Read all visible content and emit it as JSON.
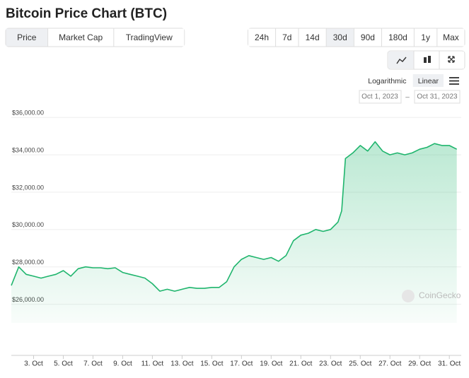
{
  "ui": {
    "tabs": [
      {
        "label": "Price",
        "active": true
      },
      {
        "label": "Market Cap",
        "active": false
      },
      {
        "label": "TradingView",
        "active": false
      }
    ],
    "ranges": [
      {
        "label": "24h",
        "active": false
      },
      {
        "label": "7d",
        "active": false
      },
      {
        "label": "14d",
        "active": false
      },
      {
        "label": "30d",
        "active": true
      },
      {
        "label": "90d",
        "active": false
      },
      {
        "label": "180d",
        "active": false
      },
      {
        "label": "1y",
        "active": false
      },
      {
        "label": "Max",
        "active": false
      }
    ],
    "scales": [
      {
        "label": "Logarithmic",
        "active": false
      },
      {
        "label": "Linear",
        "active": true
      }
    ],
    "date_from": "Oct 1, 2023",
    "date_sep": "–",
    "date_to": "Oct 31, 2023",
    "watermark": "CoinGecko"
  },
  "chart_data": {
    "type": "line",
    "title": "Bitcoin Price Chart (BTC)",
    "color": "#1fb56d",
    "grid": true,
    "log_scale": false,
    "x": [
      1.5,
      2,
      2.5,
      3,
      3.5,
      4,
      4.5,
      5,
      5.5,
      6,
      6.5,
      7,
      7.5,
      8,
      8.5,
      9,
      9.5,
      10,
      10.5,
      11,
      11.5,
      12,
      12.5,
      13,
      13.5,
      14,
      14.5,
      15,
      15.5,
      16,
      16.5,
      17,
      17.5,
      18,
      18.5,
      19,
      19.5,
      20,
      20.5,
      21,
      21.5,
      22,
      22.5,
      23,
      23.5,
      23.75,
      24,
      24.5,
      25,
      25.5,
      26,
      26.5,
      27,
      27.5,
      28,
      28.5,
      29,
      29.5,
      30,
      30.5,
      31,
      31.5
    ],
    "values": [
      27000,
      28000,
      27600,
      27500,
      27400,
      27500,
      27600,
      27800,
      27500,
      27900,
      28000,
      27950,
      27950,
      27900,
      27950,
      27700,
      27600,
      27500,
      27400,
      27100,
      26700,
      26800,
      26700,
      26800,
      26900,
      26850,
      26850,
      26900,
      26900,
      27200,
      28000,
      28400,
      28600,
      28500,
      28400,
      28500,
      28300,
      28600,
      29400,
      29700,
      29800,
      30000,
      29900,
      30000,
      30400,
      31000,
      33800,
      34100,
      34500,
      34200,
      34700,
      34200,
      34000,
      34100,
      34000,
      34100,
      34300,
      34400,
      34600,
      34500,
      34500,
      34300
    ],
    "xlim": [
      1.5,
      31.8
    ],
    "xticks": [
      {
        "value": 3,
        "label": "3. Oct"
      },
      {
        "value": 5,
        "label": "5. Oct"
      },
      {
        "value": 7,
        "label": "7. Oct"
      },
      {
        "value": 9,
        "label": "9. Oct"
      },
      {
        "value": 11,
        "label": "11. Oct"
      },
      {
        "value": 13,
        "label": "13. Oct"
      },
      {
        "value": 15,
        "label": "15. Oct"
      },
      {
        "value": 17,
        "label": "17. Oct"
      },
      {
        "value": 19,
        "label": "19. Oct"
      },
      {
        "value": 21,
        "label": "21. Oct"
      },
      {
        "value": 23,
        "label": "23. Oct"
      },
      {
        "value": 25,
        "label": "25. Oct"
      },
      {
        "value": 27,
        "label": "27. Oct"
      },
      {
        "value": 29,
        "label": "29. Oct"
      },
      {
        "value": 31,
        "label": "31. Oct"
      }
    ],
    "ylim": [
      25000,
      36500
    ],
    "yticks": [
      {
        "value": 26000,
        "label": "$26,000.00"
      },
      {
        "value": 28000,
        "label": "$28,000.00"
      },
      {
        "value": 30000,
        "label": "$30,000.00"
      },
      {
        "value": 32000,
        "label": "$32,000.00"
      },
      {
        "value": 34000,
        "label": "$34,000.00"
      },
      {
        "value": 36000,
        "label": "$36,000.00"
      }
    ]
  }
}
